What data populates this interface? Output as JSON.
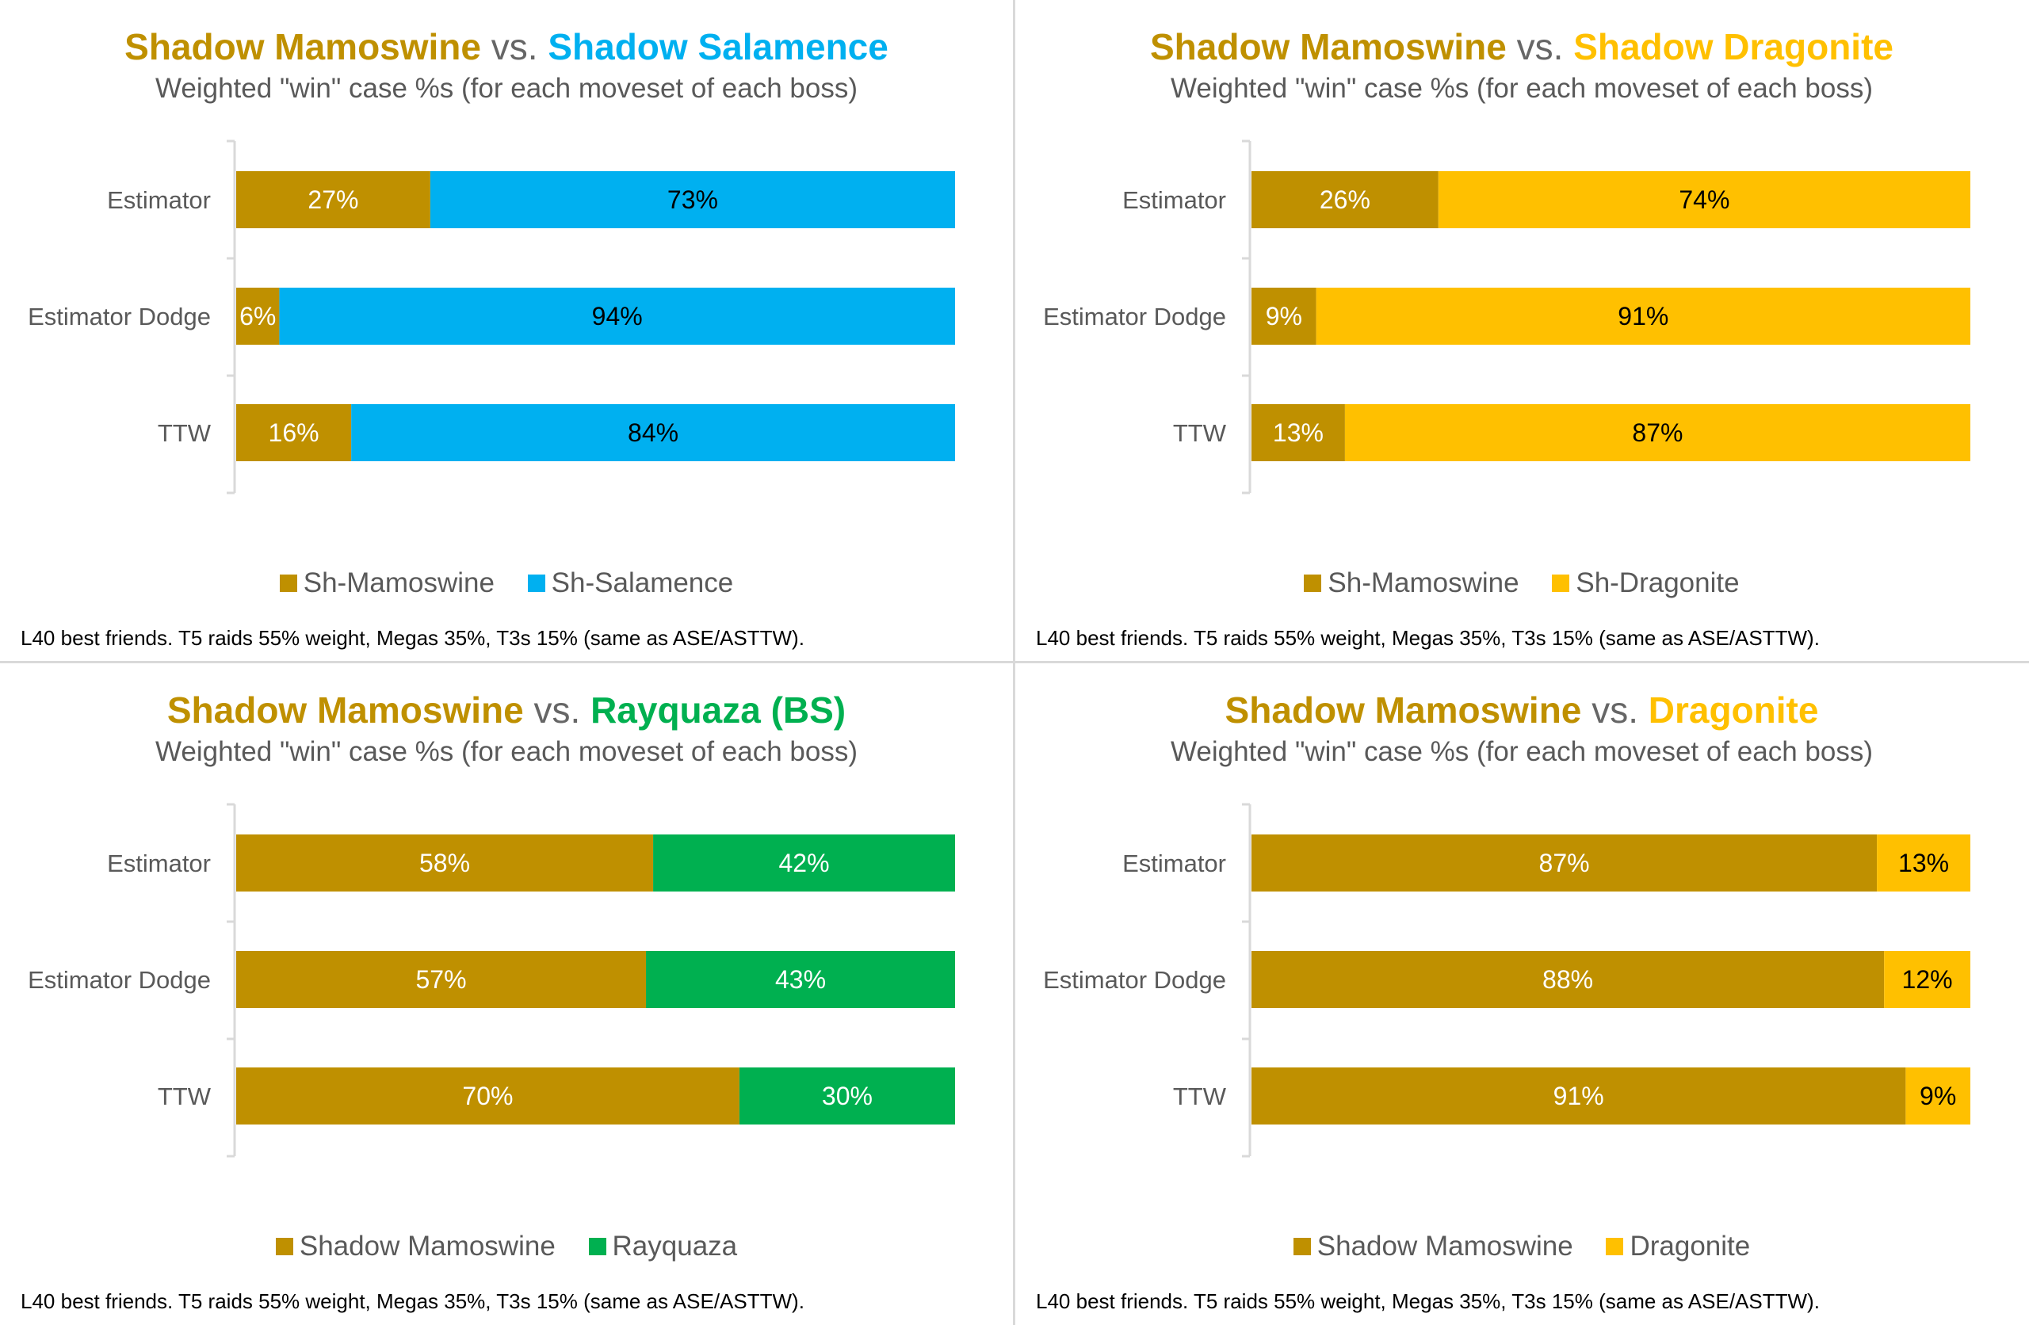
{
  "footnote": "L40 best friends. T5 raids 55% weight, Megas 35%, T3s 15% (same as ASE/ASTTW).",
  "colors": {
    "mamoswine": "#BF9000",
    "salamence": "#00B0F0",
    "dragonite": "#FFC000",
    "rayquaza": "#00B050",
    "axis": "#d9d9d9",
    "text_gray": "#595959"
  },
  "panels": [
    {
      "title": {
        "left": "Shadow Mamoswine",
        "vs": "vs.",
        "right": "Shadow Salamence",
        "right_color": "#00B0F0"
      },
      "subtitle": "Weighted \"win\" case %s (for each moveset of each boss)",
      "legend": [
        {
          "label": "Sh-Mamoswine",
          "color": "#BF9000"
        },
        {
          "label": "Sh-Salamence",
          "color": "#00B0F0"
        }
      ]
    },
    {
      "title": {
        "left": "Shadow Mamoswine",
        "vs": "vs.",
        "right": "Shadow Dragonite",
        "right_color": "#FFC000"
      },
      "subtitle": "Weighted \"win\" case %s (for each moveset of each boss)",
      "legend": [
        {
          "label": "Sh-Mamoswine",
          "color": "#BF9000"
        },
        {
          "label": "Sh-Dragonite",
          "color": "#FFC000"
        }
      ]
    },
    {
      "title": {
        "left": "Shadow Mamoswine",
        "vs": "vs.",
        "right": "Rayquaza (BS)",
        "right_color": "#00B050"
      },
      "subtitle": "Weighted \"win\" case %s (for each moveset of each boss)",
      "legend": [
        {
          "label": "Shadow Mamoswine",
          "color": "#BF9000"
        },
        {
          "label": "Rayquaza",
          "color": "#00B050"
        }
      ]
    },
    {
      "title": {
        "left": "Shadow Mamoswine",
        "vs": "vs.",
        "right": "Dragonite",
        "right_color": "#FFC000"
      },
      "subtitle": "Weighted \"win\" case %s (for each moveset of each boss)",
      "legend": [
        {
          "label": "Shadow Mamoswine",
          "color": "#BF9000"
        },
        {
          "label": "Dragonite",
          "color": "#FFC000"
        }
      ]
    }
  ],
  "chart_data": [
    {
      "type": "bar",
      "orientation": "horizontal",
      "stacked": "100%",
      "title": "Shadow Mamoswine vs. Shadow Salamence",
      "subtitle": "Weighted \"win\" case %s (for each moveset of each boss)",
      "categories": [
        "Estimator",
        "Estimator Dodge",
        "TTW"
      ],
      "series": [
        {
          "name": "Sh-Mamoswine",
          "color": "#BF9000",
          "label_color": "#ffffff",
          "values": [
            27,
            6,
            16
          ],
          "labels": [
            "27%",
            "6%",
            "16%"
          ]
        },
        {
          "name": "Sh-Salamence",
          "color": "#00B0F0",
          "label_color": "#000000",
          "values": [
            73,
            94,
            84
          ],
          "labels": [
            "73%",
            "94%",
            "84%"
          ]
        }
      ],
      "xlim": [
        0,
        100
      ],
      "legend": "bottom",
      "grid": false
    },
    {
      "type": "bar",
      "orientation": "horizontal",
      "stacked": "100%",
      "title": "Shadow Mamoswine vs. Shadow Dragonite",
      "subtitle": "Weighted \"win\" case %s (for each moveset of each boss)",
      "categories": [
        "Estimator",
        "Estimator Dodge",
        "TTW"
      ],
      "series": [
        {
          "name": "Sh-Mamoswine",
          "color": "#BF9000",
          "label_color": "#ffffff",
          "values": [
            26,
            9,
            13
          ],
          "labels": [
            "26%",
            "9%",
            "13%"
          ]
        },
        {
          "name": "Sh-Dragonite",
          "color": "#FFC000",
          "label_color": "#000000",
          "values": [
            74,
            91,
            87
          ],
          "labels": [
            "74%",
            "91%",
            "87%"
          ]
        }
      ],
      "xlim": [
        0,
        100
      ],
      "legend": "bottom",
      "grid": false
    },
    {
      "type": "bar",
      "orientation": "horizontal",
      "stacked": "100%",
      "title": "Shadow Mamoswine vs. Rayquaza (BS)",
      "subtitle": "Weighted \"win\" case %s (for each moveset of each boss)",
      "categories": [
        "Estimator",
        "Estimator Dodge",
        "TTW"
      ],
      "series": [
        {
          "name": "Shadow Mamoswine",
          "color": "#BF9000",
          "label_color": "#ffffff",
          "values": [
            58,
            57,
            70
          ],
          "labels": [
            "58%",
            "57%",
            "70%"
          ]
        },
        {
          "name": "Rayquaza",
          "color": "#00B050",
          "label_color": "#ffffff",
          "values": [
            42,
            43,
            30
          ],
          "labels": [
            "42%",
            "43%",
            "30%"
          ]
        }
      ],
      "xlim": [
        0,
        100
      ],
      "legend": "bottom",
      "grid": false
    },
    {
      "type": "bar",
      "orientation": "horizontal",
      "stacked": "100%",
      "title": "Shadow Mamoswine vs. Dragonite",
      "subtitle": "Weighted \"win\" case %s (for each moveset of each boss)",
      "categories": [
        "Estimator",
        "Estimator Dodge",
        "TTW"
      ],
      "series": [
        {
          "name": "Shadow Mamoswine",
          "color": "#BF9000",
          "label_color": "#ffffff",
          "values": [
            87,
            88,
            91
          ],
          "labels": [
            "87%",
            "88%",
            "91%"
          ]
        },
        {
          "name": "Dragonite",
          "color": "#FFC000",
          "label_color": "#000000",
          "values": [
            13,
            12,
            9
          ],
          "labels": [
            "13%",
            "12%",
            "9%"
          ]
        }
      ],
      "xlim": [
        0,
        100
      ],
      "legend": "bottom",
      "grid": false
    }
  ]
}
